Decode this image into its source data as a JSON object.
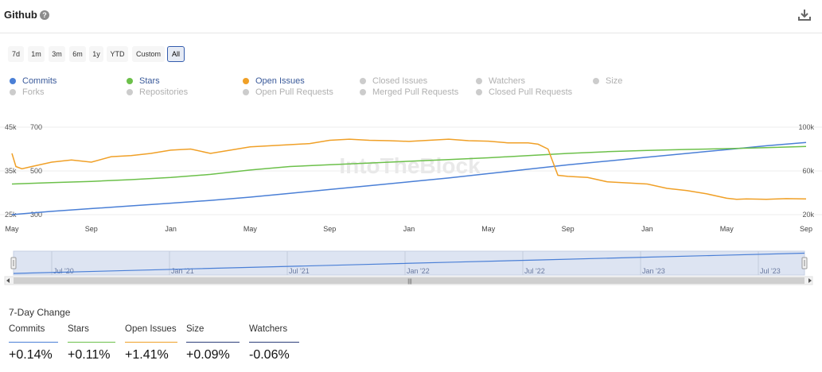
{
  "header": {
    "title": "Github",
    "help_icon": "question-circle-icon",
    "download_icon": "download-icon"
  },
  "ranges": [
    {
      "label": "7d",
      "active": false
    },
    {
      "label": "1m",
      "active": false
    },
    {
      "label": "3m",
      "active": false
    },
    {
      "label": "6m",
      "active": false
    },
    {
      "label": "1y",
      "active": false
    },
    {
      "label": "YTD",
      "active": false
    },
    {
      "label": "Custom",
      "active": false
    },
    {
      "label": "All",
      "active": true
    }
  ],
  "legend": [
    {
      "label": "Commits",
      "color": "#4a7fd6",
      "active": true
    },
    {
      "label": "Stars",
      "color": "#6cc04a",
      "active": true
    },
    {
      "label": "Open Issues",
      "color": "#f0a027",
      "active": true
    },
    {
      "label": "Closed Issues",
      "color": "#cccccc",
      "active": false
    },
    {
      "label": "Watchers",
      "color": "#cccccc",
      "active": false
    },
    {
      "label": "Size",
      "color": "#cccccc",
      "active": false
    },
    {
      "label": "Forks",
      "color": "#cccccc",
      "active": false
    },
    {
      "label": "Repositories",
      "color": "#cccccc",
      "active": false
    },
    {
      "label": "Open Pull Requests",
      "color": "#cccccc",
      "active": false
    },
    {
      "label": "Merged Pull Requests",
      "color": "#cccccc",
      "active": false
    },
    {
      "label": "Closed Pull Requests",
      "color": "#cccccc",
      "active": false
    }
  ],
  "chart_data": {
    "type": "line",
    "watermark": "IntoTheBlock",
    "x_tick_labels": [
      "May",
      "Sep",
      "Jan",
      "May",
      "Sep",
      "Jan",
      "May",
      "Sep",
      "Jan",
      "May",
      "Sep"
    ],
    "x_range_months": [
      0,
      40
    ],
    "axes": {
      "stars": {
        "ticks": [
          "45k",
          "35k",
          "25k"
        ],
        "range": [
          25000,
          45000
        ]
      },
      "open_issues": {
        "ticks": [
          "700",
          "500",
          "300"
        ],
        "range": [
          300,
          700
        ]
      },
      "commits": {
        "ticks": [
          "100k",
          "60k",
          "20k"
        ],
        "range": [
          20000,
          100000
        ]
      }
    },
    "series": [
      {
        "name": "Commits",
        "axis": "commits",
        "color": "#4a7fd6",
        "x": [
          0,
          2,
          4,
          6,
          8,
          10,
          12,
          14,
          16,
          18,
          20,
          22,
          24,
          26,
          28,
          30,
          32,
          34,
          36,
          38,
          40
        ],
        "values": [
          20000,
          23000,
          25500,
          28000,
          30500,
          33000,
          36000,
          39500,
          43000,
          46500,
          50000,
          53500,
          57500,
          61500,
          65500,
          69000,
          72500,
          76000,
          79500,
          83000,
          86000
        ]
      },
      {
        "name": "Stars",
        "axis": "stars",
        "color": "#6cc04a",
        "x": [
          0,
          2,
          4,
          6,
          8,
          10,
          12,
          14,
          16,
          18,
          20,
          22,
          24,
          26,
          28,
          30,
          32,
          34,
          36,
          38,
          40
        ],
        "values": [
          32000,
          32300,
          32600,
          33000,
          33500,
          34200,
          35200,
          36000,
          36400,
          36800,
          37200,
          37600,
          38000,
          38500,
          39000,
          39400,
          39700,
          39900,
          40100,
          40300,
          40600
        ]
      },
      {
        "name": "Open Issues",
        "axis": "open_issues",
        "color": "#f0a027",
        "x": [
          0,
          0.2,
          0.5,
          1,
          2,
          3,
          4,
          5,
          6,
          7,
          8,
          9,
          10,
          11,
          12,
          13,
          14,
          15,
          16,
          17,
          18,
          19,
          20,
          21,
          22,
          23,
          24,
          25,
          26,
          26.5,
          27,
          27.5,
          28,
          29,
          30,
          31,
          32,
          33,
          34,
          35,
          36,
          36.5,
          37,
          38,
          39,
          40
        ],
        "values": [
          580,
          520,
          510,
          520,
          540,
          550,
          540,
          565,
          570,
          580,
          595,
          600,
          580,
          595,
          610,
          615,
          620,
          625,
          640,
          645,
          640,
          638,
          635,
          640,
          645,
          638,
          636,
          628,
          628,
          622,
          600,
          480,
          475,
          470,
          450,
          445,
          440,
          420,
          410,
          395,
          375,
          370,
          372,
          370,
          373,
          372
        ]
      }
    ]
  },
  "navigator": {
    "labels": [
      "Jul '20",
      "Jan '21",
      "Jul '21",
      "Jan '22",
      "Jul '22",
      "Jan '23",
      "Jul '23"
    ],
    "series_values": [
      0,
      12,
      24,
      36,
      48,
      60,
      72,
      84,
      96,
      108
    ],
    "series_range": [
      0,
      110
    ]
  },
  "change": {
    "title": "7-Day Change",
    "items": [
      {
        "label": "Commits",
        "value": "+0.14%",
        "color": "#4a7fd6"
      },
      {
        "label": "Stars",
        "value": "+0.11%",
        "color": "#6cc04a"
      },
      {
        "label": "Open Issues",
        "value": "+1.41%",
        "color": "#f0a027"
      },
      {
        "label": "Size",
        "value": "+0.09%",
        "color": "#2c3e7a"
      },
      {
        "label": "Watchers",
        "value": "-0.06%",
        "color": "#2c3e7a"
      }
    ]
  }
}
